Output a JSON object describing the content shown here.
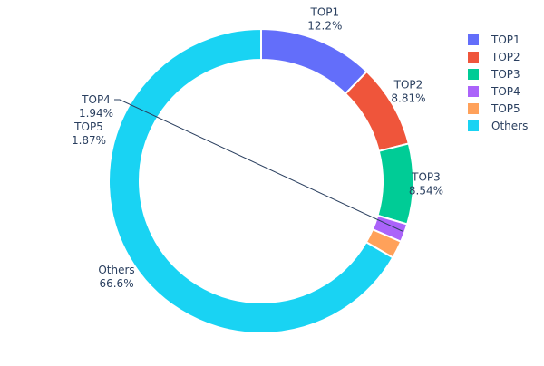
{
  "chart_data": {
    "type": "pie",
    "hole": true,
    "title": "",
    "labels": [
      "TOP1",
      "TOP2",
      "TOP3",
      "TOP4",
      "TOP5",
      "Others"
    ],
    "values": [
      12.2,
      8.81,
      8.54,
      1.94,
      1.87,
      66.6
    ],
    "percent_labels": [
      "12.2%",
      "8.81%",
      "8.54%",
      "1.94%",
      "1.87%",
      "66.6%"
    ],
    "colors": [
      "#636efa",
      "#EF553B",
      "#00cc96",
      "#ab63fa",
      "#FFA15A",
      "#19d3f3"
    ],
    "direction": "clockwise",
    "start": "top",
    "legend": {
      "position": "top-right",
      "items": [
        "TOP1",
        "TOP2",
        "TOP3",
        "TOP4",
        "TOP5",
        "Others"
      ]
    }
  }
}
